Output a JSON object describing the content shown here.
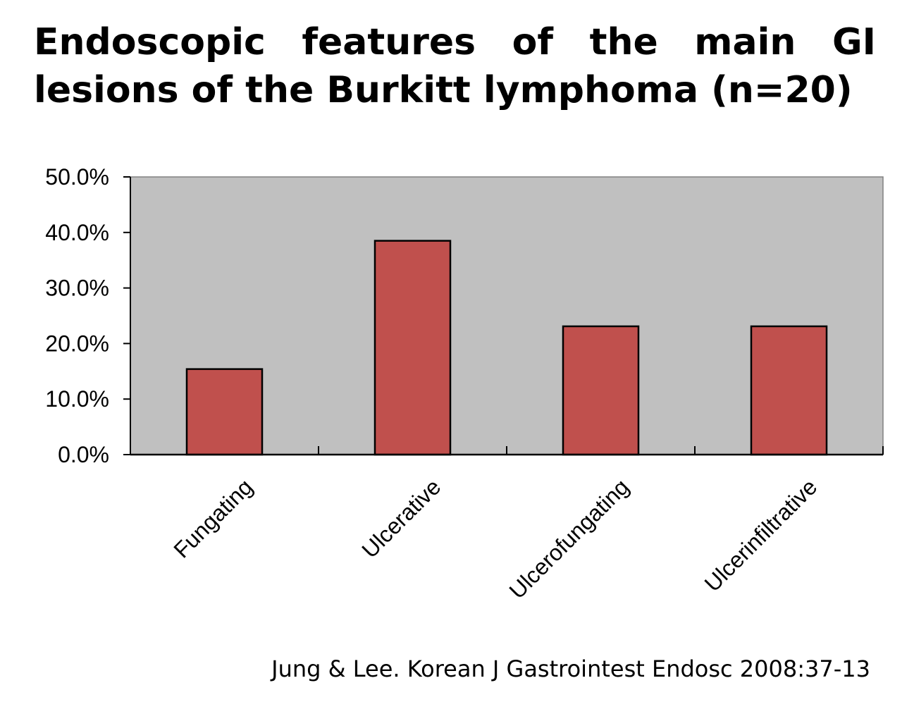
{
  "slide": {
    "title": "Endoscopic features of the main GI lesions of the Burkitt lymphoma (n=20)",
    "citation": "Jung & Lee. Korean J Gastrointest Endosc 2008:37-13"
  },
  "chart_data": {
    "type": "bar",
    "categories": [
      "Fungating",
      "Ulcerative",
      "Ulcerofungating",
      "Ulcerinfiltrative"
    ],
    "values": [
      15.4,
      38.5,
      23.1,
      23.1
    ],
    "title": "",
    "xlabel": "",
    "ylabel": "",
    "ylim": [
      0,
      50
    ],
    "yticks": [
      "0.0%",
      "10.0%",
      "20.0%",
      "30.0%",
      "40.0%",
      "50.0%"
    ],
    "grid": false,
    "legend": "none",
    "colors": {
      "bar": "#c0504d",
      "plot_background": "#c0c0c0",
      "axis": "#000000"
    }
  }
}
